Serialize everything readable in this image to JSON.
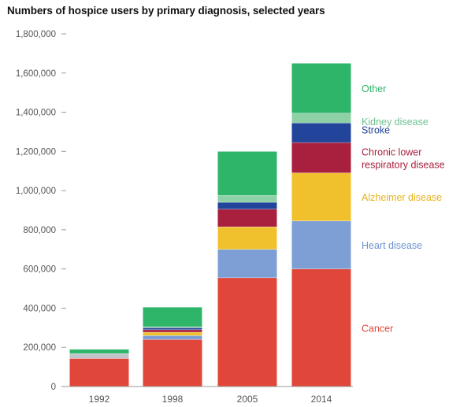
{
  "chart_data": {
    "type": "bar",
    "stacked": true,
    "title": "Numbers of hospice users by primary diagnosis, selected years",
    "xlabel": "",
    "ylabel": "",
    "ylim": [
      0,
      1800000
    ],
    "yticks": [
      0,
      200000,
      400000,
      600000,
      800000,
      1000000,
      1200000,
      1400000,
      1600000,
      1800000
    ],
    "ytick_labels": [
      "0",
      "200,000",
      "400,000",
      "600,000",
      "800,000",
      "1,000,000",
      "1,200,000",
      "1,400,000",
      "1,600,000",
      "1,800,000"
    ],
    "categories": [
      "1992",
      "1998",
      "2005",
      "2014"
    ],
    "grid": false,
    "legend_placement": "right, labels beside the last bar",
    "series": [
      {
        "name": "Cancer",
        "color": "#e0473a",
        "values": [
          143000,
          240000,
          555000,
          600000
        ]
      },
      {
        "name": "Unlabeled (light gray)",
        "color": "#c0c4c9",
        "values": [
          25000,
          0,
          0,
          0
        ]
      },
      {
        "name": "Heart disease",
        "color": "#7d9fd6",
        "values": [
          0,
          20000,
          145000,
          245000
        ]
      },
      {
        "name": "Alzheimer disease",
        "color": "#f0c12c",
        "values": [
          0,
          17000,
          115000,
          245000
        ]
      },
      {
        "name": "Chronic lower respiratory disease",
        "color": "#a8203e",
        "values": [
          0,
          13000,
          90000,
          155000
        ]
      },
      {
        "name": "Stroke",
        "color": "#22449a",
        "values": [
          0,
          10000,
          35000,
          100000
        ]
      },
      {
        "name": "Kidney disease",
        "color": "#8fd1a6",
        "values": [
          0,
          5000,
          35000,
          50000
        ]
      },
      {
        "name": "Other",
        "color": "#2fb56a",
        "values": [
          22000,
          100000,
          225000,
          255000
        ]
      }
    ],
    "legend": [
      {
        "label": "Other",
        "color": "#2fb56a",
        "series_index": 7
      },
      {
        "label": "Kidney disease",
        "color": "#6cc18e",
        "series_index": 6
      },
      {
        "label": "Stroke",
        "color": "#22449a",
        "series_index": 5
      },
      {
        "label": "Chronic lower respiratory disease",
        "lines": [
          "Chronic lower",
          "respiratory disease"
        ],
        "color": "#a8203e",
        "series_index": 4
      },
      {
        "label": "Alzheimer disease",
        "color": "#e7b21c",
        "series_index": 3
      },
      {
        "label": "Heart disease",
        "color": "#6e93cf",
        "series_index": 2
      },
      {
        "label": "Cancer",
        "color": "#e0473a",
        "series_index": 0
      }
    ]
  }
}
